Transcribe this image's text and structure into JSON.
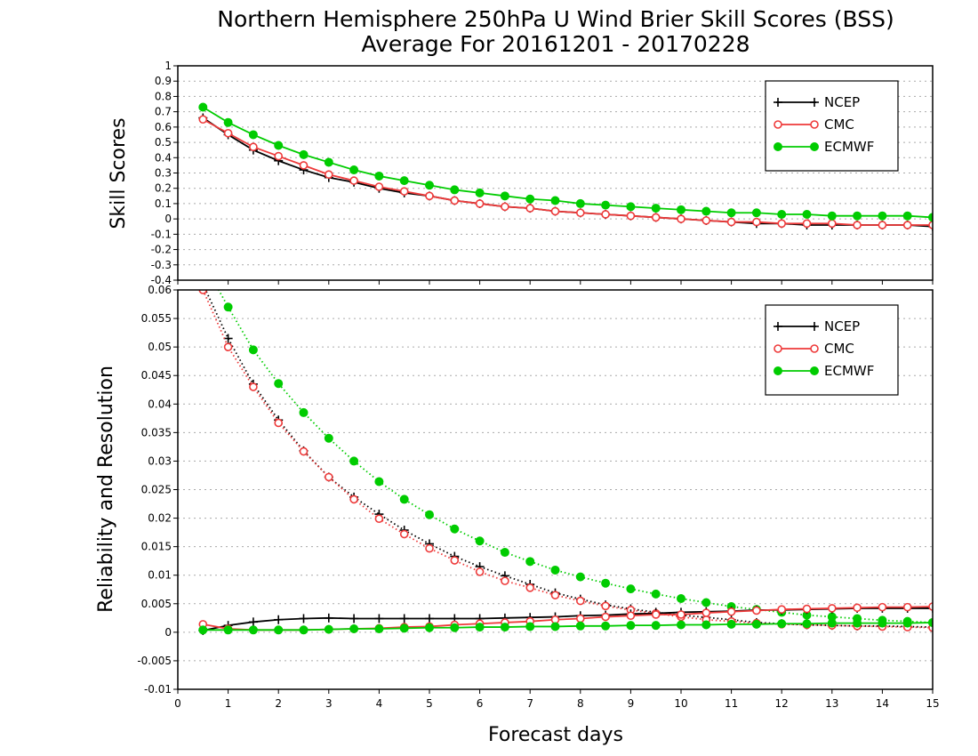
{
  "colors": {
    "ncep": "#000000",
    "cmc": "#ee3a3a",
    "ecmwf": "#00cc00",
    "grid": "#aaaaaa"
  },
  "title_line1": "Northern Hemisphere 250hPa U Wind Brier Skill Scores (BSS)",
  "title_line2": "Average For 20161201 - 20170228",
  "chart_data": [
    {
      "type": "line",
      "panel": "top",
      "ylabel": "Skill Scores",
      "xlabel": "",
      "xlim": [
        0,
        15
      ],
      "ylim": [
        -0.4,
        1
      ],
      "grid": true,
      "legend_position": "top-right",
      "xticks": [
        "0",
        "1",
        "2",
        "3",
        "4",
        "5",
        "6",
        "7",
        "8",
        "9",
        "10",
        "11",
        "12",
        "13",
        "14",
        "15"
      ],
      "yticks": [
        "-0.4",
        "-0.3",
        "-0.2",
        "-0.1",
        "0",
        "0.1",
        "0.2",
        "0.3",
        "0.4",
        "0.5",
        "0.6",
        "0.7",
        "0.8",
        "0.9",
        "1"
      ],
      "x": [
        0.5,
        1,
        1.5,
        2,
        2.5,
        3,
        3.5,
        4,
        4.5,
        5,
        5.5,
        6,
        6.5,
        7,
        7.5,
        8,
        8.5,
        9,
        9.5,
        10,
        10.5,
        11,
        11.5,
        12,
        12.5,
        13,
        13.5,
        14,
        14.5,
        15
      ],
      "series": [
        {
          "name": "NCEP",
          "key": "ncep",
          "marker": "plus",
          "line": "solid",
          "values": [
            0.66,
            0.55,
            0.45,
            0.38,
            0.32,
            0.27,
            0.24,
            0.2,
            0.17,
            0.15,
            0.12,
            0.1,
            0.08,
            0.07,
            0.05,
            0.04,
            0.03,
            0.02,
            0.01,
            0.0,
            -0.01,
            -0.02,
            -0.03,
            -0.03,
            -0.04,
            -0.04,
            -0.04,
            -0.04,
            -0.04,
            -0.05
          ]
        },
        {
          "name": "CMC",
          "key": "cmc",
          "marker": "circle-open",
          "line": "solid",
          "values": [
            0.65,
            0.56,
            0.47,
            0.41,
            0.35,
            0.29,
            0.25,
            0.21,
            0.18,
            0.15,
            0.12,
            0.1,
            0.08,
            0.07,
            0.05,
            0.04,
            0.03,
            0.02,
            0.01,
            0.0,
            -0.01,
            -0.02,
            -0.02,
            -0.03,
            -0.03,
            -0.03,
            -0.04,
            -0.04,
            -0.04,
            -0.04
          ]
        },
        {
          "name": "ECMWF",
          "key": "ecmwf",
          "marker": "circle-filled",
          "line": "solid",
          "values": [
            0.73,
            0.63,
            0.55,
            0.48,
            0.42,
            0.37,
            0.32,
            0.28,
            0.25,
            0.22,
            0.19,
            0.17,
            0.15,
            0.13,
            0.12,
            0.1,
            0.09,
            0.08,
            0.07,
            0.06,
            0.05,
            0.04,
            0.04,
            0.03,
            0.03,
            0.02,
            0.02,
            0.02,
            0.02,
            0.01
          ]
        }
      ]
    },
    {
      "type": "line",
      "panel": "bottom",
      "ylabel": "Reliability and Resolution",
      "xlabel": "Forecast days",
      "xlim": [
        0,
        15
      ],
      "ylim": [
        -0.01,
        0.06
      ],
      "grid": true,
      "legend_position": "top-right",
      "xticks": [
        "0",
        "1",
        "2",
        "3",
        "4",
        "5",
        "6",
        "7",
        "8",
        "9",
        "10",
        "11",
        "12",
        "13",
        "14",
        "15"
      ],
      "yticks": [
        "-0.01",
        "-0.005",
        "0",
        "0.005",
        "0.01",
        "0.015",
        "0.02",
        "0.025",
        "0.03",
        "0.035",
        "0.04",
        "0.045",
        "0.05",
        "0.055",
        "0.06"
      ],
      "x": [
        0.5,
        1,
        1.5,
        2,
        2.5,
        3,
        3.5,
        4,
        4.5,
        5,
        5.5,
        6,
        6.5,
        7,
        7.5,
        8,
        8.5,
        9,
        9.5,
        10,
        10.5,
        11,
        11.5,
        12,
        12.5,
        13,
        13.5,
        14,
        14.5,
        15
      ],
      "series": [
        {
          "name": "NCEP",
          "key": "ncep",
          "marker": "plus",
          "line": "dotted",
          "values": [
            0.061,
            0.0515,
            0.0435,
            0.0372,
            0.0318,
            0.0272,
            0.0237,
            0.0207,
            0.0179,
            0.0155,
            0.0133,
            0.0115,
            0.0099,
            0.0084,
            0.0069,
            0.0058,
            0.0048,
            0.0041,
            0.0035,
            0.003,
            0.0026,
            0.0022,
            0.0017,
            0.0015,
            0.0013,
            0.0012,
            0.0011,
            0.0011,
            0.001,
            0.0009
          ]
        },
        {
          "name": "CMC",
          "key": "cmc",
          "marker": "circle-open",
          "line": "dotted",
          "values": [
            0.06,
            0.05,
            0.043,
            0.0367,
            0.0317,
            0.0272,
            0.0233,
            0.0199,
            0.0172,
            0.0147,
            0.0126,
            0.0106,
            0.009,
            0.0078,
            0.0065,
            0.0055,
            0.0046,
            0.0039,
            0.0033,
            0.0027,
            0.0022,
            0.0019,
            0.0016,
            0.0014,
            0.0013,
            0.0012,
            0.0011,
            0.001,
            0.0009,
            0.0008
          ]
        },
        {
          "name": "ECMWF",
          "key": "ecmwf",
          "marker": "circle-filled",
          "line": "dotted",
          "values": [
            0.065,
            0.057,
            0.0495,
            0.0436,
            0.0385,
            0.034,
            0.03,
            0.0264,
            0.0233,
            0.0206,
            0.0181,
            0.016,
            0.014,
            0.0124,
            0.0109,
            0.0097,
            0.0086,
            0.0076,
            0.0067,
            0.0059,
            0.0052,
            0.0045,
            0.004,
            0.0035,
            0.003,
            0.0027,
            0.0024,
            0.0021,
            0.0019,
            0.0017
          ]
        },
        {
          "name": "NCEP",
          "key": "ncep",
          "marker": "plus",
          "line": "solid",
          "values": [
            0.0003,
            0.0012,
            0.0018,
            0.0022,
            0.0024,
            0.0025,
            0.0024,
            0.0024,
            0.0024,
            0.0024,
            0.0024,
            0.0024,
            0.0025,
            0.0026,
            0.0027,
            0.0029,
            0.003,
            0.0032,
            0.0033,
            0.0035,
            0.0036,
            0.0037,
            0.0039,
            0.0039,
            0.004,
            0.0041,
            0.0042,
            0.0042,
            0.0042,
            0.0042
          ]
        },
        {
          "name": "CMC",
          "key": "cmc",
          "marker": "circle-open",
          "line": "solid",
          "values": [
            0.0014,
            0.0006,
            0.0004,
            0.0004,
            0.0004,
            0.0005,
            0.0006,
            0.0007,
            0.0009,
            0.001,
            0.0013,
            0.0015,
            0.0017,
            0.0019,
            0.0022,
            0.0024,
            0.0027,
            0.0029,
            0.0031,
            0.0031,
            0.0034,
            0.0036,
            0.0038,
            0.004,
            0.0041,
            0.0042,
            0.0043,
            0.0044,
            0.0044,
            0.0045
          ]
        },
        {
          "name": "ECMWF",
          "key": "ecmwf",
          "marker": "circle-filled",
          "line": "solid",
          "values": [
            0.0004,
            0.0004,
            0.0004,
            0.0004,
            0.0004,
            0.0005,
            0.0006,
            0.0006,
            0.0007,
            0.0008,
            0.0008,
            0.0009,
            0.0009,
            0.001,
            0.001,
            0.0011,
            0.0011,
            0.0012,
            0.0012,
            0.0013,
            0.0013,
            0.0014,
            0.0014,
            0.0015,
            0.0015,
            0.0016,
            0.0016,
            0.0016,
            0.0016,
            0.0017
          ]
        }
      ]
    }
  ]
}
